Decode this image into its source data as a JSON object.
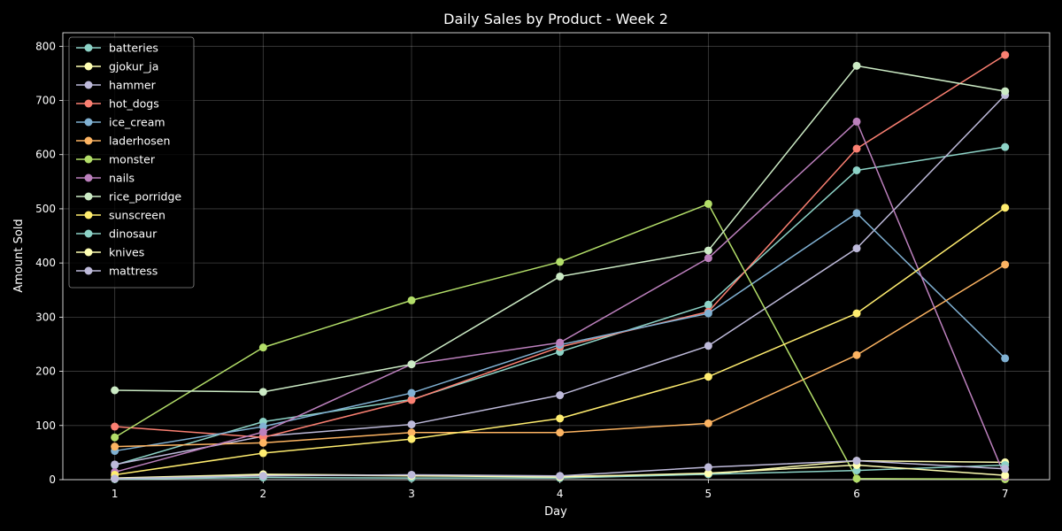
{
  "chart_data": {
    "type": "line",
    "title": "Daily Sales by Product - Week 2",
    "xlabel": "Day",
    "ylabel": "Amount Sold",
    "x": [
      1,
      2,
      3,
      4,
      5,
      6,
      7
    ],
    "xlim": [
      0.65,
      7.3
    ],
    "ylim": [
      0,
      825
    ],
    "yticks": [
      0,
      100,
      200,
      300,
      400,
      500,
      600,
      700,
      800
    ],
    "grid": true,
    "legend_position": "top-left",
    "series": [
      {
        "name": "batteries",
        "color": "#8dd3c7",
        "values": [
          27,
          107,
          148,
          236,
          323,
          571,
          614
        ]
      },
      {
        "name": "gjokur_ja",
        "color": "#ffffb3",
        "values": [
          3,
          10,
          8,
          6,
          10,
          35,
          32
        ]
      },
      {
        "name": "hammer",
        "color": "#bebada",
        "values": [
          28,
          80,
          102,
          156,
          247,
          427,
          710
        ]
      },
      {
        "name": "hot_dogs",
        "color": "#fb8072",
        "values": [
          98,
          78,
          147,
          245,
          310,
          611,
          784
        ]
      },
      {
        "name": "ice_cream",
        "color": "#80b1d3",
        "values": [
          53,
          98,
          160,
          249,
          307,
          492,
          224
        ]
      },
      {
        "name": "laderhosen",
        "color": "#fdb462",
        "values": [
          61,
          68,
          87,
          87,
          104,
          230,
          397
        ]
      },
      {
        "name": "monster",
        "color": "#b3de69",
        "values": [
          78,
          244,
          331,
          402,
          509,
          2,
          1
        ]
      },
      {
        "name": "nails",
        "color": "#bc80bd",
        "values": [
          14,
          88,
          213,
          253,
          409,
          661,
          5
        ]
      },
      {
        "name": "rice_porridge",
        "color": "#ccebc5",
        "values": [
          165,
          162,
          213,
          375,
          423,
          764,
          717
        ]
      },
      {
        "name": "sunscreen",
        "color": "#ffed6f",
        "values": [
          9,
          49,
          75,
          113,
          190,
          307,
          502
        ]
      },
      {
        "name": "dinosaur",
        "color": "#8dd3c7",
        "values": [
          1,
          4,
          3,
          3,
          10,
          17,
          27
        ]
      },
      {
        "name": "knives",
        "color": "#ffffb3",
        "values": [
          2,
          9,
          7,
          5,
          12,
          27,
          8
        ]
      },
      {
        "name": "mattress",
        "color": "#bebada",
        "values": [
          2,
          7,
          9,
          7,
          23,
          35,
          20
        ]
      }
    ]
  }
}
